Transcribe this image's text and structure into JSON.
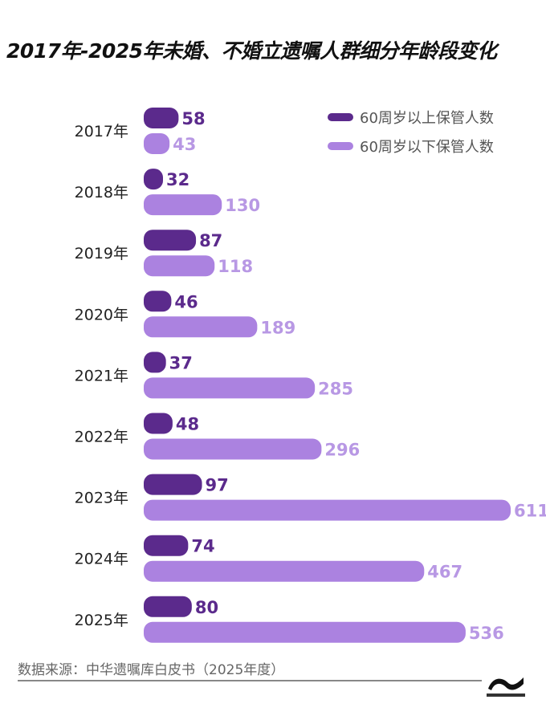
{
  "title": "2017年-2025年未婚、不婚立遗嘱人群细分年龄段变化",
  "source": "数据来源：中华遗嘱库白皮书（2025年度）",
  "colors": {
    "over60": "#5b2a8c",
    "under60": "#ab82e0",
    "over60_text": "#5b2a8c",
    "under60_text": "#b898e4"
  },
  "chart_data": {
    "type": "bar",
    "orientation": "horizontal",
    "categories": [
      "2017年",
      "2018年",
      "2019年",
      "2020年",
      "2021年",
      "2022年",
      "2023年",
      "2024年",
      "2025年"
    ],
    "series": [
      {
        "name": "60周岁以上保管人数",
        "values": [
          58,
          32,
          87,
          46,
          37,
          48,
          97,
          74,
          80
        ]
      },
      {
        "name": "60周岁以下保管人数",
        "values": [
          43,
          130,
          118,
          189,
          285,
          296,
          611,
          467,
          536
        ]
      }
    ],
    "legend": "top-right",
    "grid": false
  }
}
